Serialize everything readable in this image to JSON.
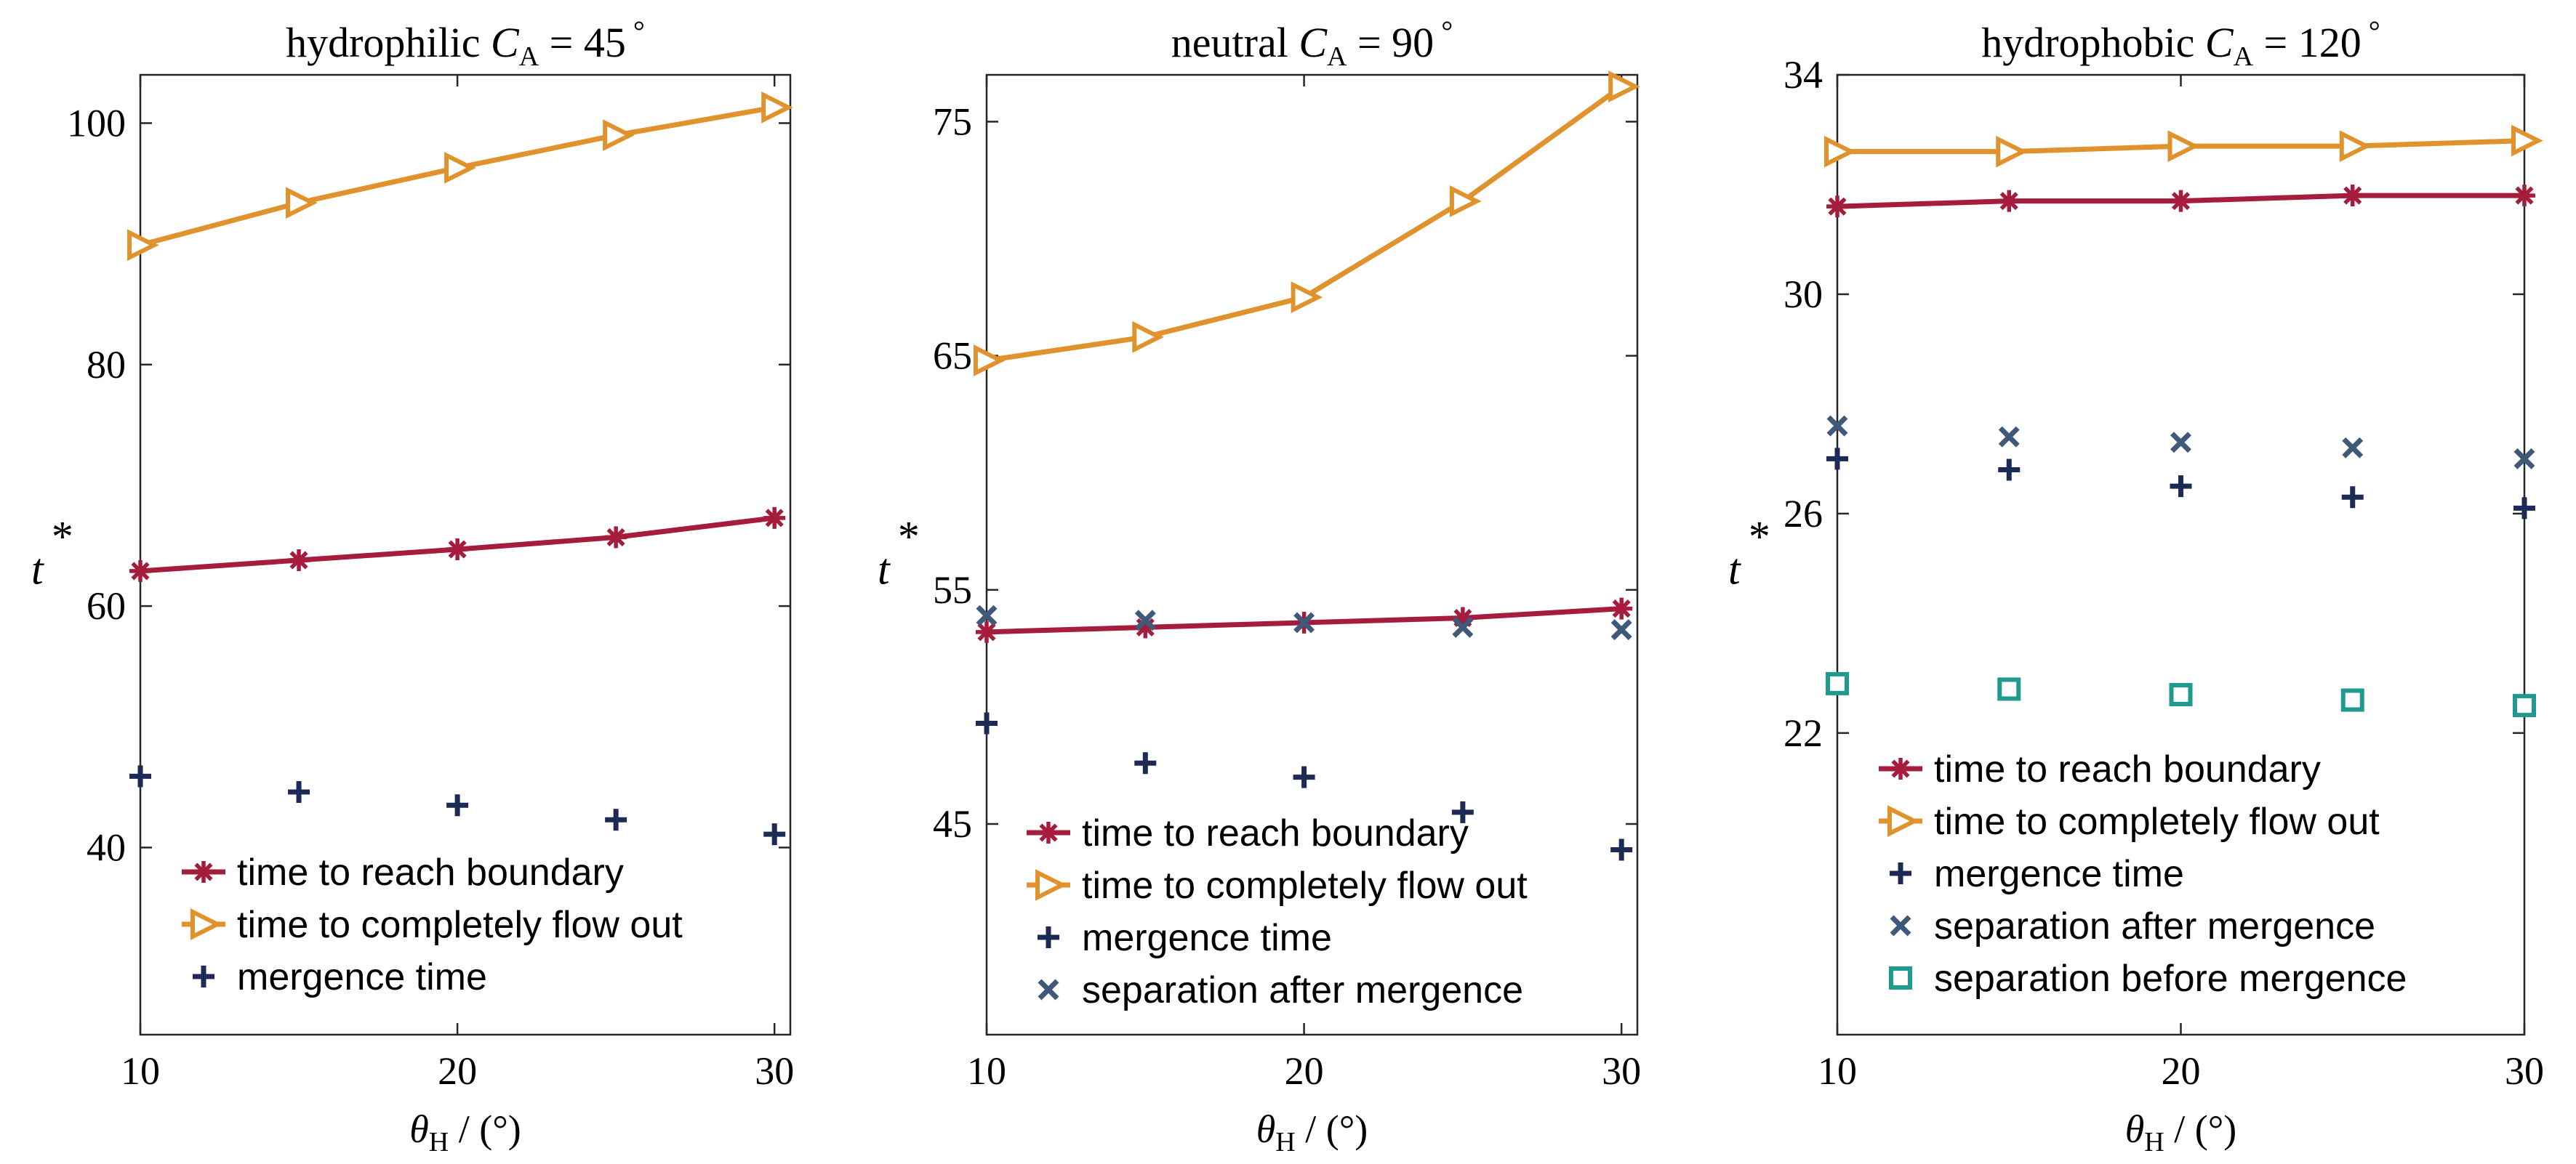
{
  "colors": {
    "reach": "#A51C3C",
    "flowout": "#E0922C",
    "mergence": "#1C2A55",
    "sep_after": "#3F5A78",
    "sep_before": "#1E9A8E"
  },
  "chart_data": [
    {
      "type": "line",
      "title": "hydrophilic",
      "title_ca": "C",
      "title_ca_sub": "A",
      "title_eq": "= 45",
      "title_deg": "°",
      "xlabel_sym": "θ",
      "xlabel_sub": "H",
      "xlabel_unit": "/ (°)",
      "ylabel": "t",
      "ylabel_sup": "*",
      "xlim": [
        10,
        30.5
      ],
      "ylim": [
        24.5,
        104
      ],
      "xticks": [
        10,
        20,
        30
      ],
      "yticks": [
        40,
        60,
        80,
        100
      ],
      "x": [
        10,
        15,
        20,
        25,
        30
      ],
      "legend": "bottom-left",
      "series": [
        {
          "name": "time to reach boundary",
          "key": "reach",
          "marker": "asterisk",
          "line": true,
          "values": [
            62.9,
            63.8,
            64.7,
            65.7,
            67.3
          ]
        },
        {
          "name": "time to completely flow out",
          "key": "flowout",
          "marker": "triangle-right",
          "line": true,
          "values": [
            89.9,
            93.4,
            96.3,
            99.0,
            101.3
          ]
        },
        {
          "name": "mergence time",
          "key": "mergence",
          "marker": "plus",
          "line": false,
          "values": [
            45.9,
            44.6,
            43.5,
            42.3,
            41.1
          ]
        }
      ]
    },
    {
      "type": "line",
      "title": "neutral",
      "title_ca": "C",
      "title_ca_sub": "A",
      "title_eq": "= 90",
      "title_deg": "°",
      "xlabel_sym": "θ",
      "xlabel_sub": "H",
      "xlabel_unit": "/ (°)",
      "ylabel": "t",
      "ylabel_sup": "*",
      "xlim": [
        10,
        30.5
      ],
      "ylim": [
        36,
        77
      ],
      "xticks": [
        10,
        20,
        30
      ],
      "yticks": [
        45,
        55,
        65,
        75
      ],
      "x": [
        10,
        15,
        20,
        25,
        30
      ],
      "legend": "bottom-left",
      "series": [
        {
          "name": "time to reach boundary",
          "key": "reach",
          "marker": "asterisk",
          "line": true,
          "values": [
            53.2,
            53.4,
            53.6,
            53.8,
            54.2
          ]
        },
        {
          "name": "time to completely flow out",
          "key": "flowout",
          "marker": "triangle-right",
          "line": true,
          "values": [
            64.8,
            65.8,
            67.5,
            71.6,
            76.5
          ]
        },
        {
          "name": "mergence time",
          "key": "mergence",
          "marker": "plus",
          "line": false,
          "values": [
            49.3,
            47.6,
            47.0,
            45.5,
            43.9
          ]
        },
        {
          "name": "separation after mergence",
          "key": "sep_after",
          "marker": "cross",
          "line": false,
          "values": [
            53.9,
            53.7,
            53.6,
            53.4,
            53.3
          ]
        }
      ]
    },
    {
      "type": "line",
      "title": "hydrophobic",
      "title_ca": "C",
      "title_ca_sub": "A",
      "title_eq": "= 120",
      "title_deg": "°",
      "xlabel_sym": "θ",
      "xlabel_sub": "H",
      "xlabel_unit": "/ (°)",
      "ylabel": "t",
      "ylabel_sup": "*",
      "xlim": [
        10,
        30
      ],
      "ylim": [
        16.5,
        34
      ],
      "xticks": [
        10,
        20,
        30
      ],
      "yticks": [
        22,
        26,
        30,
        34
      ],
      "x": [
        10,
        15,
        20,
        25,
        30
      ],
      "legend": "bottom-left",
      "series": [
        {
          "name": "time to reach boundary",
          "key": "reach",
          "marker": "asterisk",
          "line": true,
          "values": [
            31.6,
            31.7,
            31.7,
            31.8,
            31.8
          ]
        },
        {
          "name": "time to completely flow out",
          "key": "flowout",
          "marker": "triangle-right",
          "line": true,
          "values": [
            32.6,
            32.6,
            32.7,
            32.7,
            32.8
          ]
        },
        {
          "name": "mergence time",
          "key": "mergence",
          "marker": "plus",
          "line": false,
          "values": [
            27.0,
            26.8,
            26.5,
            26.3,
            26.1
          ]
        },
        {
          "name": "separation after mergence",
          "key": "sep_after",
          "marker": "cross",
          "line": false,
          "values": [
            27.6,
            27.4,
            27.3,
            27.2,
            27.0
          ]
        },
        {
          "name": "separation before mergence",
          "key": "sep_before",
          "marker": "square",
          "line": false,
          "values": [
            22.9,
            22.8,
            22.7,
            22.6,
            22.5
          ]
        }
      ]
    }
  ]
}
